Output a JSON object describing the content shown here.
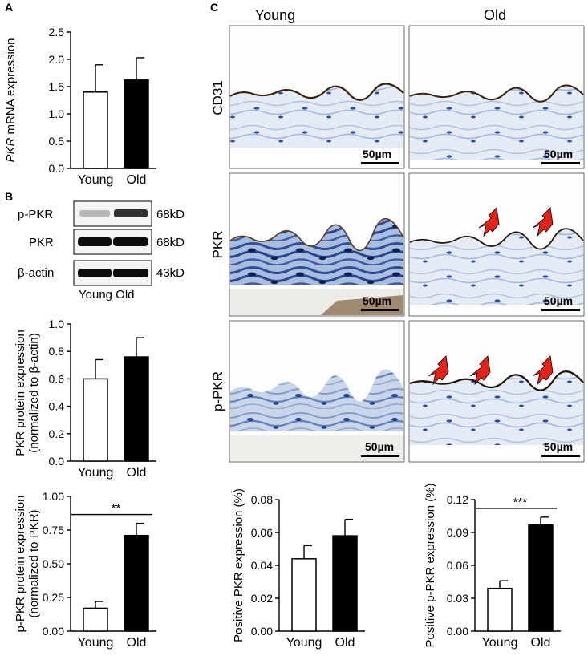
{
  "panels": {
    "A": "A",
    "B": "B",
    "C": "C"
  },
  "western_blot": {
    "rows": [
      {
        "label": "p-PKR",
        "size": "68kD",
        "young_intensity": 0.25,
        "old_intensity": 0.8
      },
      {
        "label": "PKR",
        "size": "68kD",
        "young_intensity": 0.95,
        "old_intensity": 0.95
      },
      {
        "label": "β-actin",
        "size": "43kD",
        "young_intensity": 0.95,
        "old_intensity": 0.95
      }
    ],
    "lanes_label": "Young Old"
  },
  "histology": {
    "columns": [
      "Young",
      "Old"
    ],
    "rows": [
      "CD31",
      "PKR",
      "p-PKR"
    ],
    "scale_bar": "50µm",
    "arrows": {
      "PKR_old": 2,
      "p-PKR_old": 3
    }
  },
  "chart_data": [
    {
      "id": "A",
      "type": "bar",
      "categories": [
        "Young",
        "Old"
      ],
      "values": [
        1.4,
        1.62
      ],
      "errors": [
        0.5,
        0.41
      ],
      "fills": [
        "#ffffff",
        "#000000"
      ],
      "ylabel_italic": "PKR",
      "ylabel": " mRNA expression",
      "ylim": [
        0,
        2.5
      ],
      "ticks": [
        "0.0",
        "0.5",
        "1.0",
        "1.5",
        "2.0",
        "2.5"
      ],
      "tick_values": [
        0,
        0.5,
        1,
        1.5,
        2,
        2.5
      ],
      "significance": ""
    },
    {
      "id": "B1",
      "type": "bar",
      "categories": [
        "Young",
        "Old"
      ],
      "values": [
        0.6,
        0.76
      ],
      "errors": [
        0.14,
        0.14
      ],
      "fills": [
        "#ffffff",
        "#000000"
      ],
      "ylabel": "PKR protein expression",
      "ylabel2": "(normalized to β-actin)",
      "ylim": [
        0,
        1.0
      ],
      "ticks": [
        "0.0",
        "0.2",
        "0.4",
        "0.6",
        "0.8",
        "1.0"
      ],
      "tick_values": [
        0,
        0.2,
        0.4,
        0.6,
        0.8,
        1.0
      ],
      "significance": ""
    },
    {
      "id": "B2",
      "type": "bar",
      "categories": [
        "Young",
        "Old"
      ],
      "values": [
        0.17,
        0.71
      ],
      "errors": [
        0.05,
        0.09
      ],
      "fills": [
        "#ffffff",
        "#000000"
      ],
      "ylabel": "p-PKR protein expression",
      "ylabel2": "(normalized to PKR)",
      "ylim": [
        0,
        1.0
      ],
      "ticks": [
        "0.00",
        "0.25",
        "0.50",
        "0.75",
        "1.00"
      ],
      "tick_values": [
        0,
        0.25,
        0.5,
        0.75,
        1.0
      ],
      "significance": "**"
    },
    {
      "id": "C1",
      "type": "bar",
      "categories": [
        "Young",
        "Old"
      ],
      "values": [
        0.044,
        0.058
      ],
      "errors": [
        0.008,
        0.01
      ],
      "fills": [
        "#ffffff",
        "#000000"
      ],
      "ylabel": "Positive PKR expression (%)",
      "ylim": [
        0,
        0.08
      ],
      "ticks": [
        "0.00",
        "0.02",
        "0.04",
        "0.06",
        "0.08"
      ],
      "tick_values": [
        0,
        0.02,
        0.04,
        0.06,
        0.08
      ],
      "significance": ""
    },
    {
      "id": "C2",
      "type": "bar",
      "categories": [
        "Young",
        "Old"
      ],
      "values": [
        0.039,
        0.097
      ],
      "errors": [
        0.007,
        0.007
      ],
      "fills": [
        "#ffffff",
        "#000000"
      ],
      "ylabel": "Positive p-PKR expression (%)",
      "ylim": [
        0,
        0.12
      ],
      "ticks": [
        "0.00",
        "0.03",
        "0.06",
        "0.09",
        "0.12"
      ],
      "tick_values": [
        0,
        0.03,
        0.06,
        0.09,
        0.12
      ],
      "significance": "***"
    }
  ]
}
